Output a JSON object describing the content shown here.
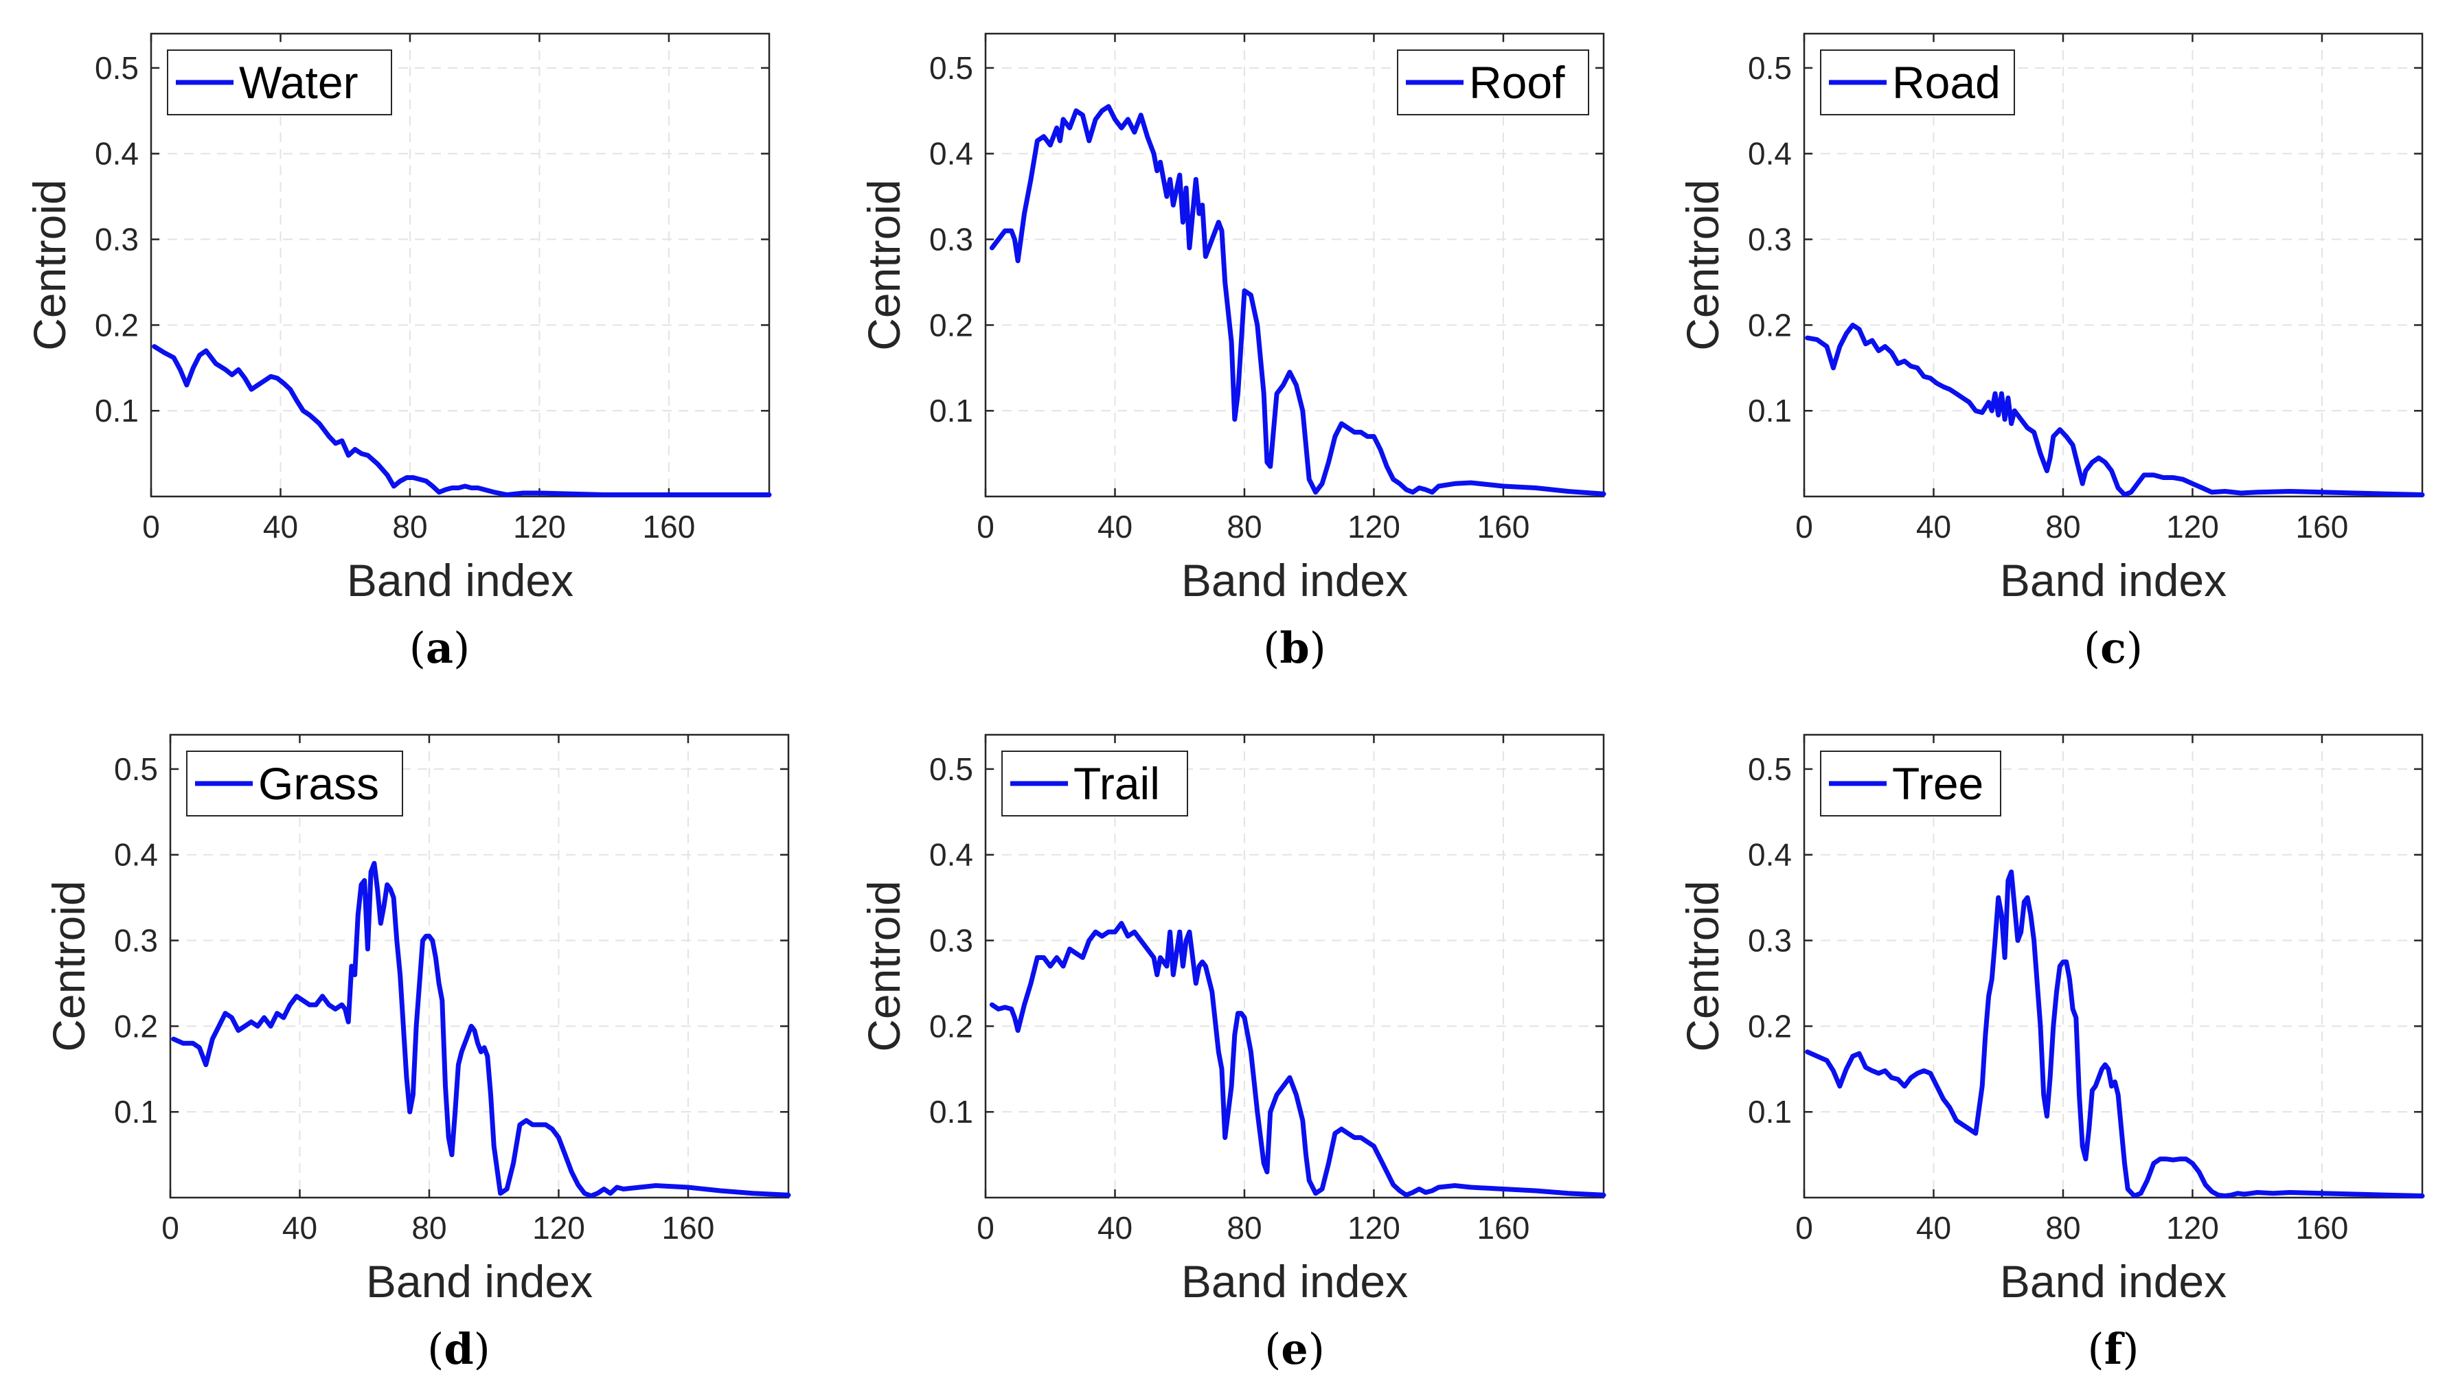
{
  "figure": {
    "colors": {
      "line": "#0a10ee",
      "grid": "#e3e3e3",
      "axis": "#262626"
    }
  },
  "chart_data": [
    {
      "type": "line",
      "caption": "a",
      "legend": "Water",
      "legend_position": "top-left",
      "xlabel": "Band index",
      "ylabel": "Centroid",
      "xlim": [
        0,
        191
      ],
      "ylim": [
        0,
        0.54
      ],
      "xticks": [
        0,
        40,
        80,
        120,
        160
      ],
      "yticks": [
        0.1,
        0.2,
        0.3,
        0.4,
        0.5
      ],
      "x": [
        1,
        4,
        7,
        9,
        11,
        13,
        15,
        17,
        20,
        23,
        25,
        27,
        29,
        31,
        33,
        35,
        37,
        39,
        41,
        43,
        45,
        47,
        49,
        52,
        55,
        57,
        59,
        61,
        63,
        65,
        67,
        70,
        73,
        75,
        77,
        79,
        81,
        83,
        85,
        87,
        89,
        91,
        93,
        95,
        97,
        99,
        101,
        103,
        106,
        110,
        115,
        120,
        130,
        140,
        150,
        160,
        170,
        180,
        191
      ],
      "series": [
        {
          "name": "Water",
          "values": [
            0.175,
            0.168,
            0.162,
            0.148,
            0.13,
            0.15,
            0.165,
            0.17,
            0.155,
            0.148,
            0.142,
            0.148,
            0.138,
            0.125,
            0.13,
            0.135,
            0.14,
            0.138,
            0.132,
            0.125,
            0.112,
            0.1,
            0.095,
            0.085,
            0.07,
            0.062,
            0.065,
            0.048,
            0.055,
            0.05,
            0.048,
            0.038,
            0.025,
            0.012,
            0.018,
            0.022,
            0.022,
            0.02,
            0.018,
            0.012,
            0.005,
            0.008,
            0.01,
            0.01,
            0.012,
            0.01,
            0.01,
            0.008,
            0.005,
            0.002,
            0.004,
            0.004,
            0.003,
            0.002,
            0.002,
            0.002,
            0.002,
            0.002,
            0.002
          ]
        }
      ]
    },
    {
      "type": "line",
      "caption": "b",
      "legend": "Roof",
      "legend_position": "top-right",
      "xlabel": "Band index",
      "ylabel": "Centroid",
      "xlim": [
        0,
        191
      ],
      "ylim": [
        0,
        0.54
      ],
      "xticks": [
        0,
        40,
        80,
        120,
        160
      ],
      "yticks": [
        0.1,
        0.2,
        0.3,
        0.4,
        0.5
      ],
      "x": [
        2,
        4,
        6,
        8,
        9,
        10,
        12,
        14,
        16,
        18,
        20,
        22,
        23,
        24,
        26,
        28,
        30,
        32,
        34,
        36,
        38,
        40,
        42,
        44,
        46,
        48,
        50,
        52,
        53,
        54,
        56,
        57,
        58,
        60,
        61,
        62,
        63,
        64,
        65,
        66,
        67,
        68,
        70,
        72,
        73,
        74,
        76,
        77,
        78,
        79,
        80,
        82,
        84,
        86,
        87,
        88,
        90,
        92,
        94,
        96,
        98,
        99,
        100,
        102,
        104,
        106,
        108,
        110,
        112,
        114,
        116,
        118,
        120,
        122,
        124,
        126,
        128,
        130,
        132,
        134,
        136,
        138,
        140,
        145,
        150,
        160,
        170,
        180,
        191
      ],
      "series": [
        {
          "name": "Roof",
          "values": [
            0.29,
            0.3,
            0.31,
            0.31,
            0.3,
            0.275,
            0.33,
            0.37,
            0.415,
            0.42,
            0.41,
            0.43,
            0.415,
            0.44,
            0.43,
            0.45,
            0.445,
            0.415,
            0.44,
            0.45,
            0.455,
            0.44,
            0.43,
            0.44,
            0.425,
            0.445,
            0.42,
            0.4,
            0.38,
            0.39,
            0.35,
            0.37,
            0.34,
            0.375,
            0.32,
            0.36,
            0.29,
            0.33,
            0.37,
            0.33,
            0.34,
            0.28,
            0.3,
            0.32,
            0.31,
            0.25,
            0.18,
            0.09,
            0.12,
            0.18,
            0.24,
            0.235,
            0.2,
            0.12,
            0.04,
            0.035,
            0.12,
            0.13,
            0.145,
            0.13,
            0.1,
            0.06,
            0.02,
            0.005,
            0.015,
            0.04,
            0.07,
            0.085,
            0.08,
            0.075,
            0.075,
            0.07,
            0.07,
            0.055,
            0.035,
            0.02,
            0.015,
            0.008,
            0.005,
            0.01,
            0.008,
            0.005,
            0.012,
            0.015,
            0.016,
            0.012,
            0.01,
            0.006,
            0.003
          ]
        }
      ]
    },
    {
      "type": "line",
      "caption": "c",
      "legend": "Road",
      "legend_position": "top-left",
      "xlabel": "Band index",
      "ylabel": "Centroid",
      "xlim": [
        0,
        191
      ],
      "ylim": [
        0,
        0.54
      ],
      "xticks": [
        0,
        40,
        80,
        120,
        160
      ],
      "yticks": [
        0.1,
        0.2,
        0.3,
        0.4,
        0.5
      ],
      "x": [
        1,
        4,
        7,
        9,
        11,
        13,
        15,
        17,
        19,
        21,
        23,
        25,
        27,
        29,
        31,
        33,
        35,
        37,
        39,
        41,
        43,
        45,
        47,
        49,
        51,
        53,
        55,
        57,
        58,
        59,
        60,
        61,
        62,
        63,
        64,
        65,
        67,
        69,
        71,
        73,
        75,
        76,
        77,
        79,
        81,
        83,
        85,
        86,
        87,
        89,
        91,
        93,
        95,
        97,
        99,
        101,
        103,
        105,
        108,
        111,
        114,
        117,
        120,
        123,
        126,
        130,
        135,
        140,
        150,
        160,
        170,
        180,
        191
      ],
      "series": [
        {
          "name": "Road",
          "values": [
            0.185,
            0.183,
            0.175,
            0.15,
            0.175,
            0.19,
            0.2,
            0.195,
            0.178,
            0.182,
            0.17,
            0.175,
            0.168,
            0.155,
            0.158,
            0.152,
            0.15,
            0.14,
            0.138,
            0.132,
            0.128,
            0.125,
            0.12,
            0.115,
            0.11,
            0.1,
            0.098,
            0.11,
            0.1,
            0.12,
            0.095,
            0.12,
            0.09,
            0.115,
            0.085,
            0.1,
            0.09,
            0.08,
            0.075,
            0.05,
            0.03,
            0.045,
            0.07,
            0.078,
            0.07,
            0.06,
            0.03,
            0.015,
            0.03,
            0.04,
            0.045,
            0.04,
            0.03,
            0.01,
            0.002,
            0.005,
            0.015,
            0.025,
            0.025,
            0.022,
            0.022,
            0.02,
            0.015,
            0.01,
            0.005,
            0.006,
            0.004,
            0.005,
            0.006,
            0.005,
            0.004,
            0.003,
            0.002
          ]
        }
      ]
    },
    {
      "type": "line",
      "caption": "d",
      "legend": "Grass",
      "legend_position": "top-left",
      "xlabel": "Band index",
      "ylabel": "Centroid",
      "xlim": [
        0,
        191
      ],
      "ylim": [
        0,
        0.54
      ],
      "xticks": [
        0,
        40,
        80,
        120,
        160
      ],
      "yticks": [
        0.1,
        0.2,
        0.3,
        0.4,
        0.5
      ],
      "x": [
        1,
        4,
        7,
        9,
        11,
        13,
        15,
        17,
        19,
        21,
        23,
        25,
        27,
        29,
        31,
        33,
        35,
        37,
        39,
        41,
        43,
        45,
        47,
        49,
        51,
        53,
        54,
        55,
        56,
        57,
        58,
        59,
        60,
        61,
        62,
        63,
        64,
        65,
        66,
        67,
        68,
        69,
        70,
        71,
        72,
        73,
        74,
        75,
        76,
        77,
        78,
        79,
        80,
        81,
        82,
        83,
        84,
        85,
        86,
        87,
        88,
        89,
        90,
        91,
        92,
        93,
        94,
        95,
        96,
        97,
        98,
        99,
        100,
        102,
        104,
        106,
        108,
        110,
        112,
        114,
        116,
        118,
        120,
        122,
        124,
        126,
        128,
        130,
        132,
        134,
        136,
        138,
        140,
        145,
        150,
        160,
        170,
        180,
        191
      ],
      "series": [
        {
          "name": "Grass",
          "values": [
            0.185,
            0.18,
            0.18,
            0.175,
            0.155,
            0.185,
            0.2,
            0.215,
            0.21,
            0.195,
            0.2,
            0.205,
            0.2,
            0.21,
            0.2,
            0.215,
            0.21,
            0.225,
            0.235,
            0.23,
            0.225,
            0.225,
            0.235,
            0.225,
            0.22,
            0.225,
            0.22,
            0.205,
            0.27,
            0.26,
            0.33,
            0.365,
            0.37,
            0.29,
            0.38,
            0.39,
            0.36,
            0.32,
            0.34,
            0.365,
            0.36,
            0.35,
            0.3,
            0.26,
            0.2,
            0.14,
            0.1,
            0.12,
            0.2,
            0.25,
            0.3,
            0.305,
            0.305,
            0.3,
            0.28,
            0.25,
            0.23,
            0.13,
            0.07,
            0.05,
            0.1,
            0.155,
            0.17,
            0.18,
            0.19,
            0.2,
            0.195,
            0.18,
            0.17,
            0.175,
            0.165,
            0.12,
            0.06,
            0.005,
            0.01,
            0.04,
            0.085,
            0.09,
            0.085,
            0.085,
            0.085,
            0.08,
            0.07,
            0.05,
            0.03,
            0.015,
            0.005,
            0.002,
            0.005,
            0.01,
            0.005,
            0.012,
            0.01,
            0.012,
            0.014,
            0.012,
            0.008,
            0.005,
            0.003
          ]
        }
      ]
    },
    {
      "type": "line",
      "caption": "e",
      "legend": "Trail",
      "legend_position": "top-left",
      "xlabel": "Band index",
      "ylabel": "Centroid",
      "xlim": [
        0,
        191
      ],
      "ylim": [
        0,
        0.54
      ],
      "xticks": [
        0,
        40,
        80,
        120,
        160
      ],
      "yticks": [
        0.1,
        0.2,
        0.3,
        0.4,
        0.5
      ],
      "x": [
        2,
        4,
        6,
        8,
        9,
        10,
        12,
        14,
        16,
        18,
        20,
        22,
        24,
        26,
        28,
        30,
        32,
        34,
        36,
        38,
        40,
        42,
        44,
        46,
        48,
        50,
        52,
        53,
        54,
        56,
        57,
        58,
        60,
        61,
        62,
        63,
        64,
        65,
        66,
        67,
        68,
        70,
        72,
        73,
        74,
        76,
        77,
        78,
        79,
        80,
        82,
        84,
        86,
        87,
        88,
        90,
        92,
        94,
        96,
        98,
        99,
        100,
        102,
        104,
        106,
        108,
        110,
        112,
        114,
        116,
        118,
        120,
        122,
        124,
        126,
        128,
        130,
        132,
        134,
        136,
        138,
        140,
        145,
        150,
        160,
        170,
        180,
        191
      ],
      "series": [
        {
          "name": "Trail",
          "values": [
            0.225,
            0.22,
            0.222,
            0.22,
            0.21,
            0.195,
            0.225,
            0.25,
            0.28,
            0.28,
            0.27,
            0.28,
            0.27,
            0.29,
            0.285,
            0.28,
            0.3,
            0.31,
            0.305,
            0.31,
            0.31,
            0.32,
            0.305,
            0.31,
            0.3,
            0.29,
            0.28,
            0.26,
            0.28,
            0.27,
            0.31,
            0.26,
            0.31,
            0.27,
            0.3,
            0.31,
            0.28,
            0.25,
            0.27,
            0.275,
            0.27,
            0.24,
            0.17,
            0.15,
            0.07,
            0.13,
            0.19,
            0.215,
            0.215,
            0.21,
            0.17,
            0.1,
            0.04,
            0.03,
            0.1,
            0.12,
            0.13,
            0.14,
            0.12,
            0.09,
            0.05,
            0.02,
            0.005,
            0.01,
            0.04,
            0.075,
            0.08,
            0.075,
            0.07,
            0.07,
            0.065,
            0.06,
            0.045,
            0.03,
            0.015,
            0.008,
            0.003,
            0.006,
            0.01,
            0.006,
            0.008,
            0.012,
            0.014,
            0.012,
            0.01,
            0.008,
            0.005,
            0.003
          ]
        }
      ]
    },
    {
      "type": "line",
      "caption": "f",
      "legend": "Tree",
      "legend_position": "top-left",
      "xlabel": "Band index",
      "ylabel": "Centroid",
      "xlim": [
        0,
        191
      ],
      "ylim": [
        0,
        0.54
      ],
      "xticks": [
        0,
        40,
        80,
        120,
        160
      ],
      "yticks": [
        0.1,
        0.2,
        0.3,
        0.4,
        0.5
      ],
      "x": [
        1,
        4,
        7,
        9,
        11,
        13,
        15,
        17,
        19,
        21,
        23,
        25,
        27,
        29,
        31,
        33,
        35,
        37,
        39,
        41,
        43,
        45,
        47,
        49,
        51,
        53,
        55,
        56,
        57,
        58,
        59,
        60,
        61,
        62,
        63,
        64,
        65,
        66,
        67,
        68,
        69,
        70,
        71,
        72,
        73,
        74,
        75,
        76,
        77,
        78,
        79,
        80,
        81,
        82,
        83,
        84,
        85,
        86,
        87,
        88,
        89,
        90,
        91,
        92,
        93,
        94,
        95,
        96,
        97,
        98,
        99,
        100,
        102,
        104,
        106,
        108,
        110,
        112,
        114,
        116,
        118,
        120,
        122,
        124,
        126,
        128,
        130,
        132,
        134,
        136,
        138,
        140,
        145,
        150,
        160,
        170,
        180,
        191
      ],
      "series": [
        {
          "name": "Tree",
          "values": [
            0.17,
            0.165,
            0.16,
            0.148,
            0.13,
            0.15,
            0.165,
            0.168,
            0.152,
            0.148,
            0.145,
            0.148,
            0.14,
            0.138,
            0.13,
            0.14,
            0.145,
            0.148,
            0.145,
            0.13,
            0.115,
            0.105,
            0.09,
            0.085,
            0.08,
            0.075,
            0.13,
            0.19,
            0.235,
            0.255,
            0.3,
            0.35,
            0.33,
            0.28,
            0.37,
            0.38,
            0.34,
            0.3,
            0.31,
            0.345,
            0.35,
            0.33,
            0.3,
            0.25,
            0.2,
            0.12,
            0.095,
            0.14,
            0.2,
            0.24,
            0.27,
            0.275,
            0.275,
            0.255,
            0.22,
            0.21,
            0.12,
            0.06,
            0.045,
            0.08,
            0.125,
            0.13,
            0.14,
            0.15,
            0.155,
            0.15,
            0.13,
            0.135,
            0.12,
            0.08,
            0.04,
            0.01,
            0.002,
            0.005,
            0.02,
            0.04,
            0.045,
            0.045,
            0.044,
            0.045,
            0.045,
            0.04,
            0.03,
            0.015,
            0.007,
            0.003,
            0.002,
            0.003,
            0.005,
            0.004,
            0.005,
            0.006,
            0.005,
            0.006,
            0.005,
            0.004,
            0.003,
            0.002
          ]
        }
      ]
    }
  ]
}
